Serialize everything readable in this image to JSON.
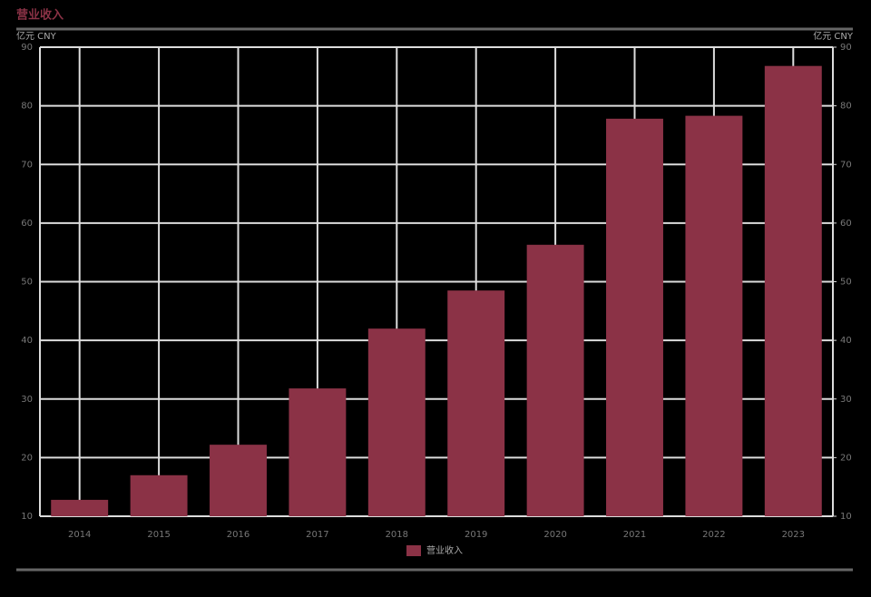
{
  "chart_data": {
    "type": "bar",
    "title": "营业收入",
    "y_label": "亿元 CNY",
    "y2_label": "亿元 CNY",
    "categories": [
      "2014",
      "2015",
      "2016",
      "2017",
      "2018",
      "2019",
      "2020",
      "2021",
      "2022",
      "2023"
    ],
    "series": [
      {
        "name": "营业收入",
        "color": "#8b3246",
        "values": [
          12.8,
          17.0,
          22.2,
          31.8,
          42.0,
          48.5,
          56.3,
          77.8,
          78.3,
          86.8
        ]
      }
    ],
    "ylim": [
      10,
      90
    ],
    "yticks": [
      10,
      20,
      30,
      40,
      50,
      60,
      70,
      80,
      90
    ],
    "y2lim": [
      10,
      90
    ],
    "y2ticks": [
      10,
      20,
      30,
      40,
      50,
      60,
      70,
      80,
      90
    ],
    "grid": true,
    "legend": "bottom"
  }
}
